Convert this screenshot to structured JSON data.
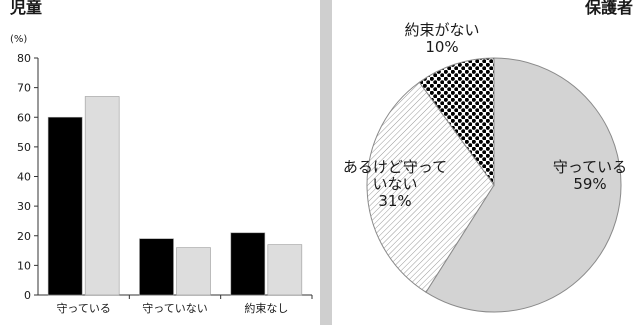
{
  "panels": {
    "left_title": "児童",
    "right_title": "保護者"
  },
  "chart_data": [
    {
      "type": "bar",
      "title": "児童",
      "ylabel": "(%)",
      "ylim": [
        0,
        80
      ],
      "yticks": [
        0,
        10,
        20,
        30,
        40,
        50,
        60,
        70,
        80
      ],
      "categories": [
        "守っている",
        "守っていない",
        "約束なし"
      ],
      "series": [
        {
          "values": [
            60,
            19,
            21
          ],
          "color": "#000000"
        },
        {
          "values": [
            67,
            16,
            17
          ],
          "color": "#dddddd"
        }
      ],
      "grid": false
    },
    {
      "type": "pie",
      "title": "保護者",
      "slices": [
        {
          "label_lines": [
            "守っている",
            "59%"
          ],
          "value": 59,
          "fill": "light-gray"
        },
        {
          "label_lines": [
            "あるけど守って",
            "いない",
            "31%"
          ],
          "value": 31,
          "fill": "fine-hatch"
        },
        {
          "label_lines": [
            "約束がない",
            "10%"
          ],
          "value": 10,
          "fill": "dots"
        }
      ]
    }
  ]
}
